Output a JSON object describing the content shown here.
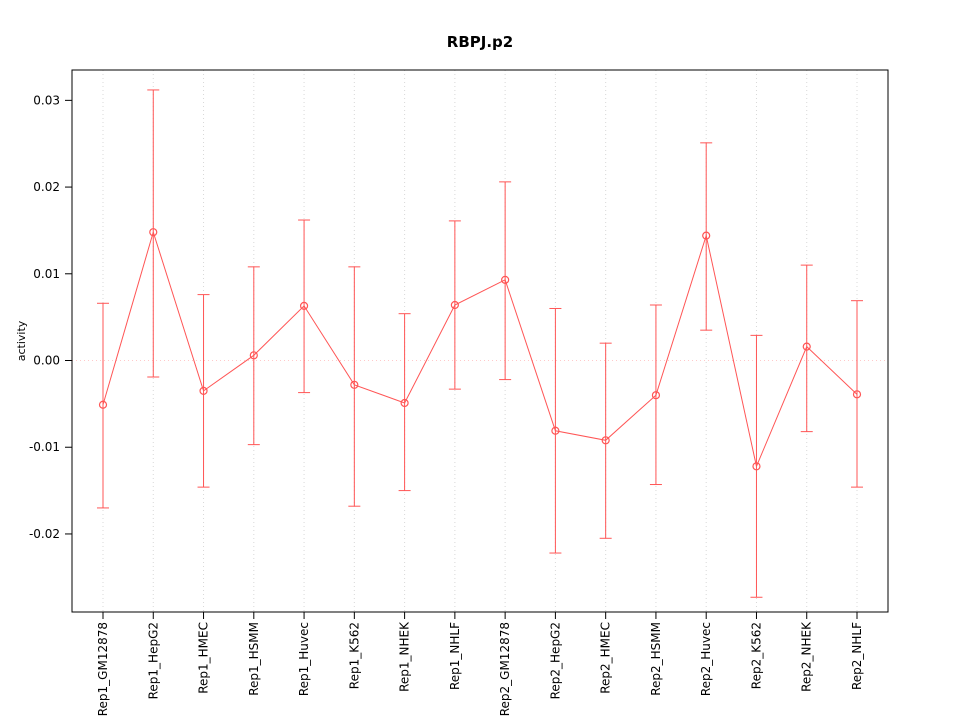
{
  "chart_data": {
    "type": "line",
    "title": "RBPJ.p2",
    "xlabel": "",
    "ylabel": "activity",
    "categories": [
      "Rep1_GM12878",
      "Rep1_HepG2",
      "Rep1_HMEC",
      "Rep1_HSMM",
      "Rep1_Huvec",
      "Rep1_K562",
      "Rep1_NHEK",
      "Rep1_NHLF",
      "Rep2_GM12878",
      "Rep2_HepG2",
      "Rep2_HMEC",
      "Rep2_HSMM",
      "Rep2_Huvec",
      "Rep2_K562",
      "Rep2_NHEK",
      "Rep2_NHLF"
    ],
    "series": [
      {
        "name": "activity",
        "values": [
          -0.0051,
          0.0148,
          -0.0035,
          0.0006,
          0.0063,
          -0.0028,
          -0.0049,
          0.0064,
          0.0093,
          -0.0081,
          -0.0092,
          -0.004,
          0.0144,
          -0.0122,
          0.0016,
          -0.0039
        ],
        "lower": [
          -0.017,
          -0.0019,
          -0.0146,
          -0.0097,
          -0.0037,
          -0.0168,
          -0.015,
          -0.0033,
          -0.0022,
          -0.0222,
          -0.0205,
          -0.0143,
          0.0035,
          -0.0273,
          -0.0082,
          -0.0146
        ],
        "upper": [
          0.0066,
          0.0312,
          0.0076,
          0.0108,
          0.0162,
          0.0108,
          0.0054,
          0.0161,
          0.0206,
          0.006,
          0.002,
          0.0064,
          0.0251,
          0.0029,
          0.011,
          0.0069
        ]
      }
    ],
    "yticks": [
      -0.02,
      -0.01,
      0,
      0.01,
      0.02,
      0.03
    ],
    "ylim": [
      -0.029,
      0.0335
    ],
    "grid": "vertical-dotted",
    "zero_line": true,
    "legend": "none",
    "colors": {
      "series": "#FF5555",
      "grid": "#D8D8D8",
      "zero_line": "#FFC9C9",
      "axis": "#000000",
      "background": "#FFFFFF"
    },
    "marker": "open-circle",
    "error_bars": true
  }
}
